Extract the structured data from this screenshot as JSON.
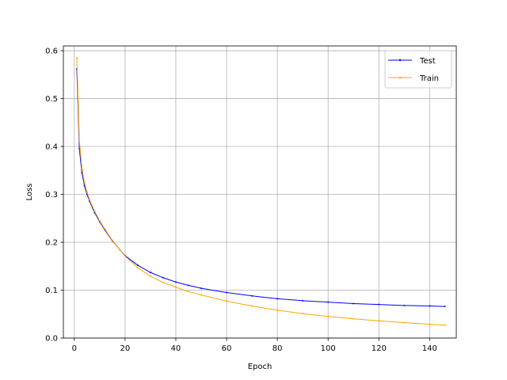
{
  "chart_data": {
    "type": "line",
    "title": "",
    "xlabel": "Epoch",
    "ylabel": "Loss",
    "xlim": [
      -4.3,
      150.5
    ],
    "ylim": [
      0.0,
      0.61
    ],
    "xticks": [
      0,
      20,
      40,
      60,
      80,
      100,
      120,
      140
    ],
    "yticks": [
      0.0,
      0.1,
      0.2,
      0.3,
      0.4,
      0.5,
      0.6
    ],
    "grid": true,
    "legend_position": "top-right",
    "series": [
      {
        "name": "Test",
        "color": "#0000ff",
        "x": [
          1,
          2,
          3,
          4,
          5,
          6,
          8,
          10,
          12,
          15,
          18,
          20,
          25,
          30,
          35,
          40,
          45,
          50,
          60,
          70,
          80,
          90,
          100,
          110,
          120,
          130,
          140,
          146
        ],
        "y": [
          0.562,
          0.395,
          0.345,
          0.318,
          0.3,
          0.286,
          0.262,
          0.243,
          0.226,
          0.203,
          0.184,
          0.172,
          0.152,
          0.137,
          0.126,
          0.117,
          0.11,
          0.104,
          0.095,
          0.088,
          0.082,
          0.078,
          0.075,
          0.072,
          0.07,
          0.068,
          0.067,
          0.066
        ]
      },
      {
        "name": "Train",
        "color": "#ffa500",
        "x": [
          1,
          2,
          3,
          4,
          5,
          6,
          8,
          10,
          12,
          15,
          18,
          20,
          25,
          30,
          35,
          40,
          45,
          50,
          60,
          70,
          80,
          90,
          100,
          110,
          120,
          130,
          140,
          146
        ],
        "y": [
          0.585,
          0.412,
          0.355,
          0.325,
          0.305,
          0.289,
          0.265,
          0.245,
          0.228,
          0.204,
          0.184,
          0.171,
          0.147,
          0.129,
          0.116,
          0.106,
          0.097,
          0.09,
          0.077,
          0.067,
          0.058,
          0.051,
          0.045,
          0.04,
          0.036,
          0.032,
          0.029,
          0.027
        ]
      }
    ]
  }
}
